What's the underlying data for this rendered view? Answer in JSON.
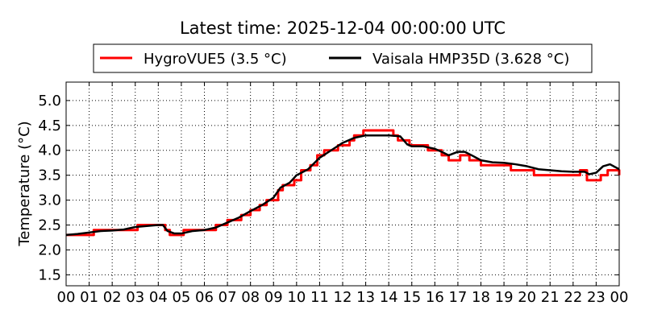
{
  "chart_data": {
    "type": "line",
    "title": "Latest time: 2025-12-04 00:00:00 UTC",
    "xlabel": "",
    "ylabel": "Temperature (°C)",
    "xlim": [
      0,
      24
    ],
    "ylim": [
      1.28,
      5.37
    ],
    "grid": true,
    "legend_position": "top-center",
    "x_ticks": [
      0,
      1,
      2,
      3,
      4,
      5,
      6,
      7,
      8,
      9,
      10,
      11,
      12,
      13,
      14,
      15,
      16,
      17,
      18,
      19,
      20,
      21,
      22,
      23,
      24
    ],
    "x_tick_labels": [
      "00",
      "01",
      "02",
      "03",
      "04",
      "05",
      "06",
      "07",
      "08",
      "09",
      "10",
      "11",
      "12",
      "13",
      "14",
      "15",
      "16",
      "17",
      "18",
      "19",
      "20",
      "21",
      "22",
      "23",
      "00"
    ],
    "y_ticks": [
      1.5,
      2.0,
      2.5,
      3.0,
      3.5,
      4.0,
      4.5,
      5.0
    ],
    "y_tick_labels": [
      "1.5",
      "2.0",
      "2.5",
      "3.0",
      "3.5",
      "4.0",
      "4.5",
      "5.0"
    ],
    "series": [
      {
        "name": "HygroVUE5 (3.5 °C)",
        "color": "#ff0000",
        "step": true,
        "x": [
          0,
          1,
          1.2,
          3,
          3.1,
          4.3,
          4.5,
          5.1,
          6.5,
          7,
          7.6,
          8,
          8.4,
          8.7,
          9.2,
          9.4,
          9.9,
          10.2,
          10.6,
          10.9,
          11.2,
          11.8,
          12.3,
          12.5,
          12.9,
          14.2,
          14.4,
          14.9,
          15.7,
          16.3,
          16.6,
          17.1,
          17.5,
          18,
          19.3,
          20.3,
          22.3,
          22.6,
          23.2,
          23.5,
          24
        ],
        "y": [
          2.3,
          2.3,
          2.4,
          2.4,
          2.5,
          2.4,
          2.3,
          2.4,
          2.5,
          2.6,
          2.7,
          2.8,
          2.9,
          3.0,
          3.2,
          3.3,
          3.4,
          3.6,
          3.7,
          3.9,
          4.0,
          4.1,
          4.2,
          4.3,
          4.4,
          4.3,
          4.2,
          4.1,
          4.0,
          3.9,
          3.8,
          3.9,
          3.8,
          3.7,
          3.6,
          3.5,
          3.6,
          3.4,
          3.5,
          3.6,
          3.5
        ]
      },
      {
        "name": "Vaisala HMP35D (3.628 °C)",
        "color": "#000000",
        "step": false,
        "x": [
          0,
          0.5,
          1,
          1.5,
          2,
          2.5,
          3,
          3.5,
          4,
          4.2,
          4.4,
          4.7,
          5,
          5.5,
          6,
          6.5,
          7,
          7.5,
          8,
          8.5,
          9,
          9.3,
          9.7,
          10,
          10.5,
          11,
          11.5,
          12,
          12.5,
          13,
          13.5,
          14,
          14.5,
          14.8,
          15,
          15.5,
          16,
          16.3,
          16.6,
          17,
          17.3,
          17.6,
          18,
          18.5,
          19,
          19.5,
          20,
          20.5,
          21,
          21.5,
          22,
          22.5,
          22.7,
          23,
          23.3,
          23.6,
          24
        ],
        "y": [
          2.3,
          2.32,
          2.35,
          2.38,
          2.39,
          2.41,
          2.46,
          2.48,
          2.5,
          2.5,
          2.38,
          2.33,
          2.33,
          2.38,
          2.4,
          2.45,
          2.55,
          2.65,
          2.78,
          2.9,
          3.05,
          3.25,
          3.35,
          3.5,
          3.62,
          3.85,
          4.0,
          4.15,
          4.25,
          4.3,
          4.3,
          4.3,
          4.28,
          4.12,
          4.08,
          4.08,
          4.03,
          3.97,
          3.9,
          3.97,
          3.97,
          3.9,
          3.8,
          3.76,
          3.75,
          3.72,
          3.68,
          3.62,
          3.6,
          3.58,
          3.57,
          3.57,
          3.52,
          3.55,
          3.68,
          3.72,
          3.62
        ]
      }
    ]
  }
}
